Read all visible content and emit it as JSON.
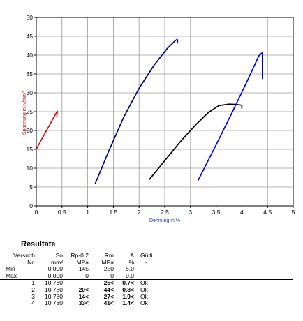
{
  "chart_data": {
    "type": "line",
    "xlabel": "Dehnung in %",
    "ylabel": "Spannung in N/mm²",
    "xlim": [
      0,
      5
    ],
    "ylim": [
      0,
      50
    ],
    "xticks": [
      "0",
      "0.5",
      "1",
      "1.5",
      "2",
      "2.5",
      "3",
      "3.5",
      "4",
      "4.5",
      "5"
    ],
    "yticks": [
      "0",
      "5",
      "10",
      "15",
      "20",
      "25",
      "30",
      "35",
      "40",
      "45",
      "50"
    ],
    "grid": true,
    "series": [
      {
        "color": "#cc1010",
        "x": [
          0.0,
          0.1,
          0.2,
          0.3,
          0.38,
          0.41,
          0.4
        ],
        "y": [
          15.0,
          17.6,
          20.0,
          22.5,
          24.5,
          25.1,
          23.8
        ]
      },
      {
        "color": "#00007a",
        "x": [
          1.15,
          1.4,
          1.7,
          2.0,
          2.3,
          2.55,
          2.7,
          2.74,
          2.75,
          2.74
        ],
        "y": [
          6.0,
          14.2,
          23.5,
          31.2,
          37.5,
          41.8,
          43.8,
          44.2,
          43.6,
          43.2
        ]
      },
      {
        "color": "#000000",
        "x": [
          2.2,
          2.5,
          2.8,
          3.1,
          3.35,
          3.55,
          3.75,
          3.9,
          4.0,
          4.0
        ],
        "y": [
          7.0,
          12.0,
          17.0,
          21.5,
          24.8,
          26.6,
          27.0,
          26.9,
          26.7,
          25.9
        ]
      },
      {
        "color": "#0000e0",
        "x": [
          3.15,
          3.5,
          3.8,
          4.1,
          4.33,
          4.4,
          4.4
        ],
        "y": [
          6.8,
          16.2,
          24.5,
          33.0,
          39.8,
          40.7,
          33.8
        ]
      }
    ]
  },
  "results": {
    "title": "Resultate",
    "header1": [
      "Versuch",
      "So",
      "Rp-0.2",
      "Rm",
      "A",
      "Gülti"
    ],
    "header2": [
      "Nr.",
      "mm²",
      "MPa",
      "MPa",
      "%",
      "-"
    ],
    "min": [
      "Min",
      "0.000",
      "145",
      "250",
      "5.0",
      ""
    ],
    "max": [
      "Max",
      "0.000",
      "0",
      "0",
      "0.0",
      ""
    ],
    "rows": [
      [
        "1",
        "10.780",
        "",
        "25<",
        "0.7<",
        "Ok"
      ],
      [
        "2",
        "10.780",
        "20<",
        "44<",
        "0.8<",
        "Ok"
      ],
      [
        "3",
        "10.780",
        "14<",
        "27<",
        "1.9<",
        "Ok"
      ],
      [
        "4",
        "10.780",
        "33<",
        "41<",
        "1.4<",
        "Ok"
      ]
    ]
  }
}
